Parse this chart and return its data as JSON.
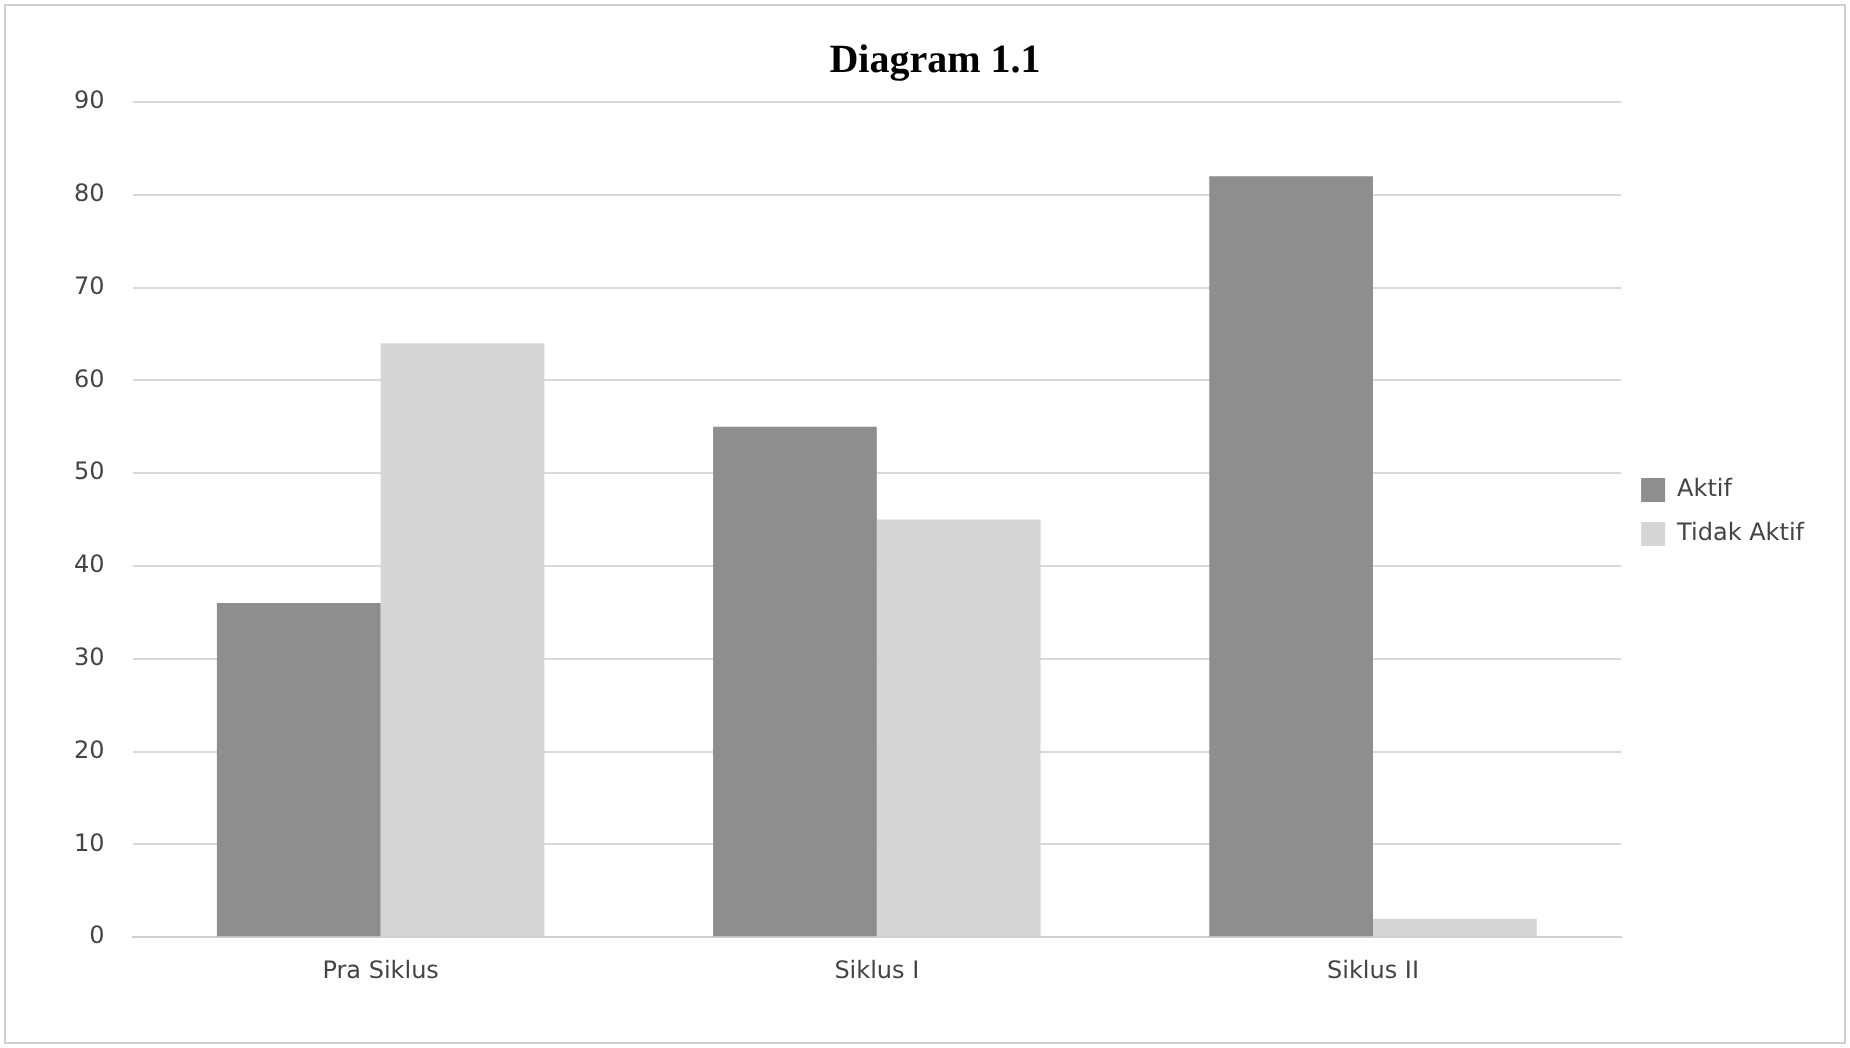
{
  "chart_data": {
    "type": "bar",
    "title": "Diagram 1.1",
    "categories": [
      "Pra Siklus",
      "Siklus I",
      "Siklus II"
    ],
    "series": [
      {
        "name": "Aktif",
        "color": "#8e8e8e",
        "values": [
          36,
          55,
          82
        ]
      },
      {
        "name": "Tidak Aktif",
        "color": "#d6d6d6",
        "values": [
          64,
          45,
          2
        ]
      }
    ],
    "ylim": [
      0,
      90
    ],
    "yticks": [
      0,
      10,
      20,
      30,
      40,
      50,
      60,
      70,
      80,
      90
    ],
    "grid": "y",
    "legend": "right"
  }
}
